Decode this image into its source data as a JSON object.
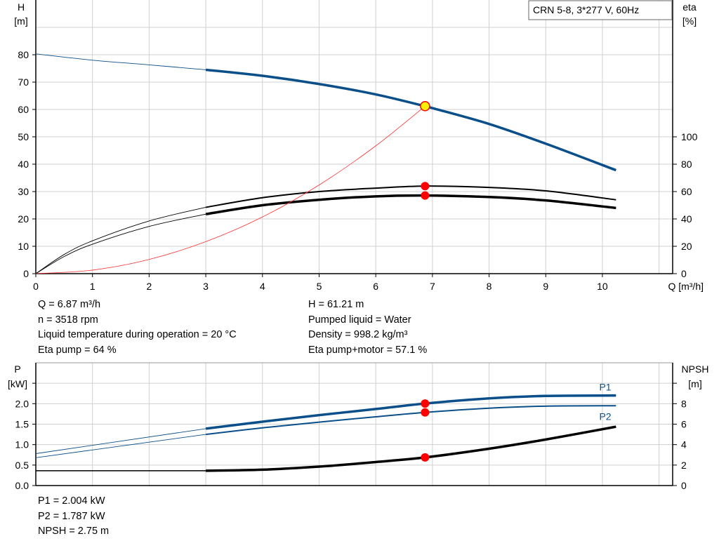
{
  "title": "CRN 5-8, 3*277 V, 60Hz",
  "colors": {
    "head": "#0a4f8a",
    "eta": "#000000",
    "system": "#ff3030",
    "power": "#0a4f8a",
    "npsh": "#000000",
    "point": "#ff0000",
    "duty": "#ffee00",
    "grid": "#d0d0d0"
  },
  "chart_data": [
    {
      "type": "line",
      "xlabel": "Q [m³/h]",
      "ylabel_left": [
        "H",
        "[m]"
      ],
      "ylabel_right": [
        "eta",
        "[%]"
      ],
      "xlim": [
        0,
        11.24
      ],
      "ylim_left": [
        0,
        100
      ],
      "ylim_right": [
        0,
        200
      ],
      "xticks": [
        0,
        1,
        2,
        3,
        4,
        5,
        6,
        7,
        8,
        9,
        10
      ],
      "yticks_left": [
        0,
        10,
        20,
        30,
        40,
        50,
        60,
        70,
        80
      ],
      "yticks_right": [
        0,
        20,
        40,
        60,
        80,
        100
      ],
      "grid": true,
      "series": [
        {
          "axis": "left",
          "kind": "head",
          "x": [
            0,
            1,
            2,
            3,
            4,
            5,
            6,
            6.87,
            7,
            8,
            9,
            10.24
          ],
          "y": [
            80.3,
            78,
            76.3,
            74.5,
            72.3,
            69.3,
            65.5,
            61.2,
            60.5,
            54.7,
            47.5,
            37.8
          ]
        },
        {
          "axis": "right",
          "kind": "eta",
          "x": [
            0,
            0.5,
            1,
            2,
            3,
            4,
            5,
            6,
            6.87,
            8,
            9,
            10.24
          ],
          "y": [
            0,
            14,
            24,
            38.5,
            48.5,
            55.5,
            60,
            62.5,
            64,
            63,
            60.5,
            54
          ]
        },
        {
          "axis": "right",
          "kind": "eta2",
          "x": [
            0,
            0.5,
            1,
            2,
            3,
            4,
            5,
            6,
            6.87,
            8,
            9,
            10.24
          ],
          "y": [
            0,
            12.5,
            21.5,
            34.5,
            43.5,
            50,
            54,
            56.5,
            57.1,
            56,
            53.5,
            48
          ]
        },
        {
          "axis": "left",
          "kind": "system",
          "x": [
            0,
            1,
            2,
            3,
            4,
            5,
            6,
            6.87
          ],
          "y": [
            0,
            1.3,
            5.2,
            11.7,
            20.7,
            32.4,
            46.7,
            61.2
          ]
        }
      ],
      "duty_point": {
        "Q": 6.87,
        "H": 61.21,
        "eta_pump": 64,
        "eta_total": 57.1
      }
    },
    {
      "type": "line",
      "ylabel_left": [
        "P",
        "[kW]"
      ],
      "ylabel_right": [
        "NPSH",
        "[m]"
      ],
      "xlim": [
        0,
        11.24
      ],
      "ylim_left": [
        0,
        3
      ],
      "ylim_right": [
        0,
        12
      ],
      "yticks_left": [
        "0.0",
        "0.5",
        "1.0",
        "1.5",
        "2.0"
      ],
      "yticks_right": [
        0,
        2,
        4,
        6,
        8
      ],
      "grid": true,
      "series": [
        {
          "axis": "left",
          "name": "P1",
          "x": [
            0,
            3,
            4,
            5,
            6,
            6.87,
            8,
            9,
            10.24
          ],
          "y": [
            0.78,
            1.39,
            1.56,
            1.72,
            1.87,
            2.004,
            2.13,
            2.19,
            2.2
          ]
        },
        {
          "axis": "left",
          "name": "P2",
          "x": [
            0,
            3,
            4,
            5,
            6,
            6.87,
            8,
            9,
            10.24
          ],
          "y": [
            0.68,
            1.25,
            1.41,
            1.55,
            1.68,
            1.787,
            1.89,
            1.94,
            1.95
          ]
        },
        {
          "axis": "right",
          "kind": "npsh",
          "x": [
            0,
            3,
            4,
            5,
            6,
            6.87,
            8,
            9,
            10.24
          ],
          "y": [
            1.45,
            1.45,
            1.55,
            1.85,
            2.3,
            2.75,
            3.6,
            4.5,
            5.75
          ]
        }
      ]
    }
  ],
  "info1": {
    "left": [
      "Q = 6.87 m³/h",
      "n = 3518 rpm",
      "Liquid temperature during operation = 20 °C",
      "Eta pump = 64 %"
    ],
    "right": [
      "H = 61.21 m",
      "Pumped liquid = Water",
      "Density = 998.2 kg/m³",
      "Eta pump+motor = 57.1 %"
    ]
  },
  "info2": [
    "P1 = 2.004 kW",
    "P2 = 1.787 kW",
    "NPSH = 2.75 m"
  ]
}
